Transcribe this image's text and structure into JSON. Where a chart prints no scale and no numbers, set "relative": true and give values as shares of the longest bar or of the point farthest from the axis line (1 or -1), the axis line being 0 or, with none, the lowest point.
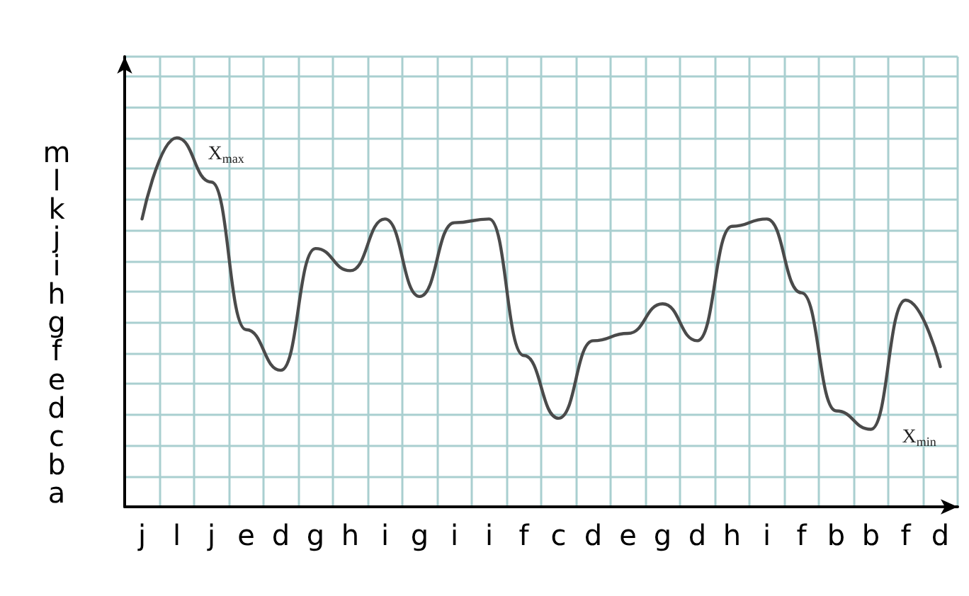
{
  "chart_data": {
    "type": "line",
    "relative": true,
    "annotations": [
      "X$_{max}$",
      "X$_{min}$",
      "m",
      "l",
      "k",
      "j",
      "i",
      "h",
      "g",
      "f",
      "e",
      "d",
      "c",
      "b",
      "a"
    ],
    "categories": [
      "j",
      "l",
      "j",
      "e",
      "d",
      "g",
      "h",
      "i",
      "g",
      "i",
      "i",
      "f",
      "c",
      "d",
      "e",
      "g",
      "d",
      "h",
      "i",
      "f",
      "b",
      "b",
      "f",
      "d"
    ],
    "grid": true,
    "marker": "none",
    "line_style": "solid",
    "series": [
      {
        "color": "#4a4a4a",
        "values": [
          0.78,
          1,
          0.88,
          0.48,
          0.37,
          0.7,
          0.64,
          0.78,
          0.57,
          0.77,
          0.78,
          0.41,
          0.24,
          0.45,
          0.47,
          0.55,
          0.45,
          0.76,
          0.78,
          0.58,
          0.26,
          0.21,
          0.56,
          0.38
        ]
      }
    ]
  }
}
